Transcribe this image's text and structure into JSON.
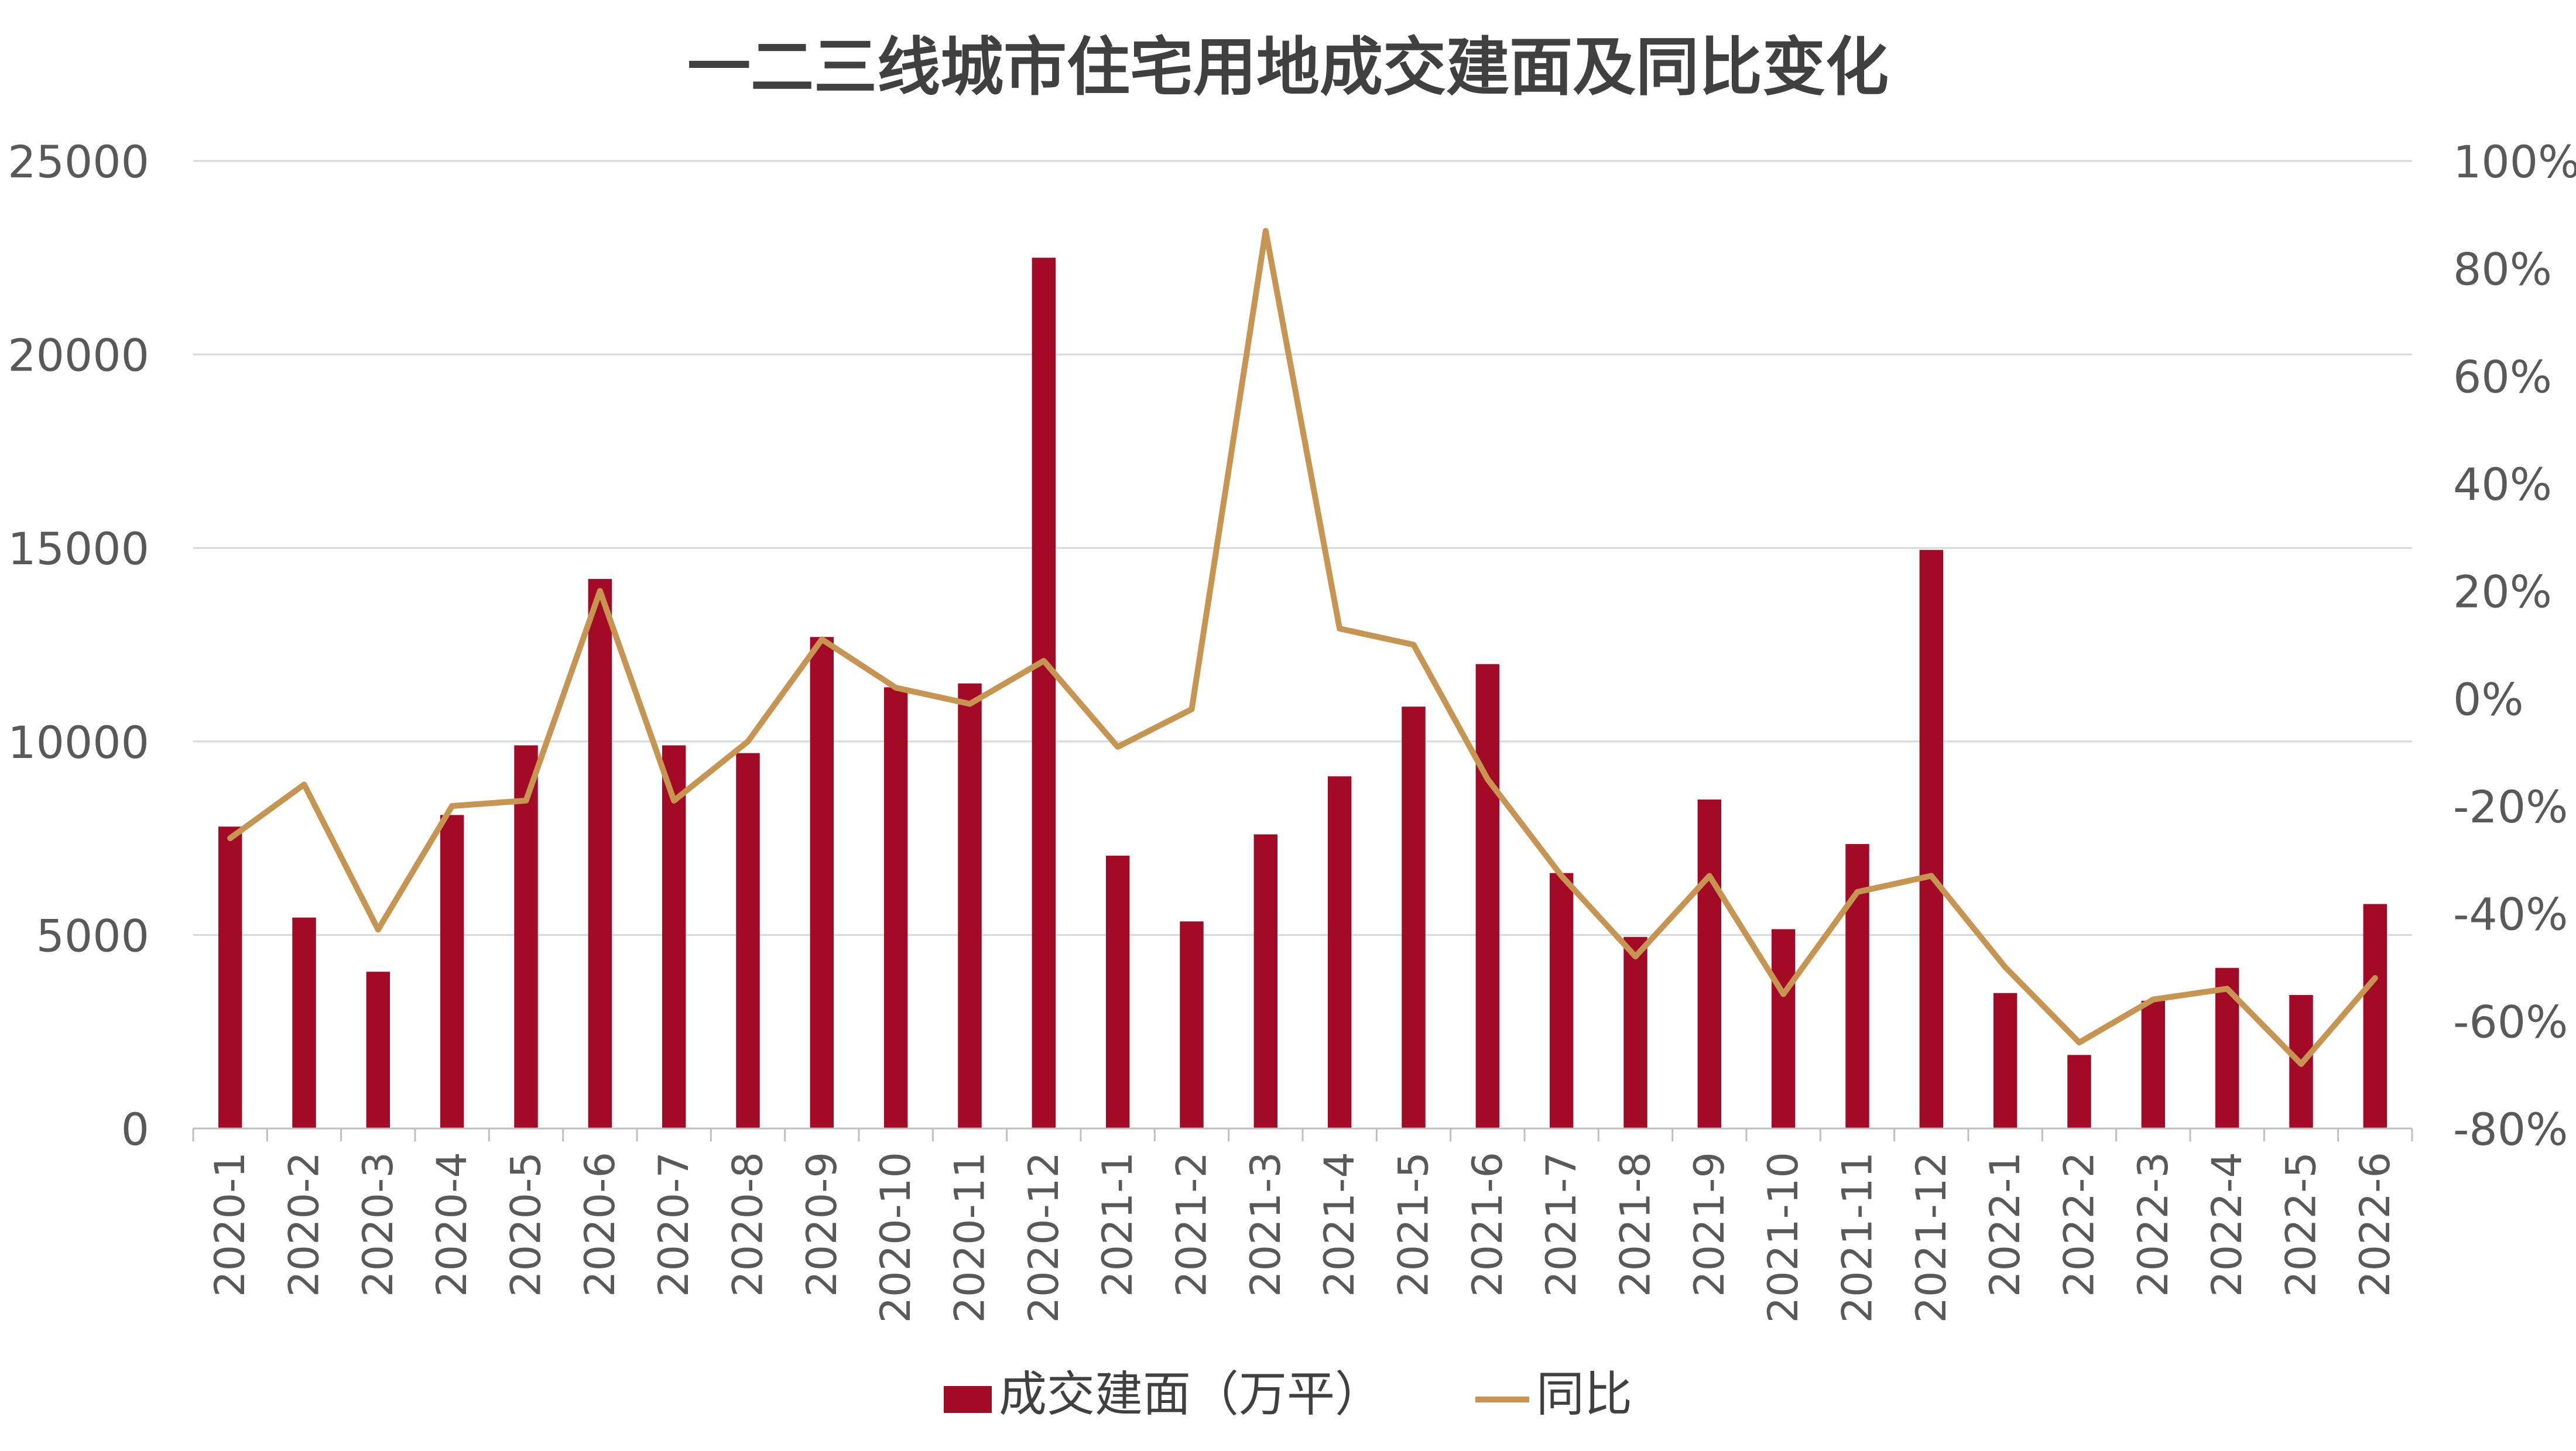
{
  "chart_data": {
    "type": "bar",
    "title": "一二三线城市住宅用地成交建面及同比变化",
    "categories": [
      "2020-1",
      "2020-2",
      "2020-3",
      "2020-4",
      "2020-5",
      "2020-6",
      "2020-7",
      "2020-8",
      "2020-9",
      "2020-10",
      "2020-11",
      "2020-12",
      "2021-1",
      "2021-2",
      "2021-3",
      "2021-4",
      "2021-5",
      "2021-6",
      "2021-7",
      "2021-8",
      "2021-9",
      "2021-10",
      "2021-11",
      "2021-12",
      "2022-1",
      "2022-2",
      "2022-3",
      "2022-4",
      "2022-5",
      "2022-6"
    ],
    "series": [
      {
        "name": "成交建面（万平）",
        "type": "bar",
        "axis": "left",
        "color": "#A20A25",
        "values": [
          7800,
          5450,
          4050,
          8100,
          9900,
          14200,
          9900,
          9700,
          12700,
          11400,
          11500,
          22500,
          7050,
          5350,
          7600,
          9100,
          10900,
          12000,
          6600,
          4950,
          8500,
          5150,
          7350,
          14950,
          3500,
          1900,
          3300,
          4150,
          3450,
          5800
        ]
      },
      {
        "name": "同比",
        "type": "line",
        "axis": "right",
        "color": "#C79552",
        "values": [
          -26,
          -16,
          -43,
          -20,
          -19,
          20,
          -19,
          -8,
          11,
          2,
          -1,
          7,
          -9,
          -2,
          87,
          13,
          10,
          -15,
          -33,
          -48,
          -33,
          -55,
          -36,
          -33,
          -50,
          -64,
          -56,
          -54,
          -68,
          -52
        ]
      }
    ],
    "y_left": {
      "min": 0,
      "max": 25000,
      "ticks": [
        "0",
        "5000",
        "10000",
        "15000",
        "20000",
        "25000"
      ]
    },
    "y_right": {
      "min": -80,
      "max": 100,
      "ticks": [
        "-80%",
        "-60%",
        "-40%",
        "-20%",
        "0%",
        "20%",
        "40%",
        "60%",
        "80%",
        "100%"
      ]
    },
    "grid": true,
    "legend": "bottom"
  }
}
